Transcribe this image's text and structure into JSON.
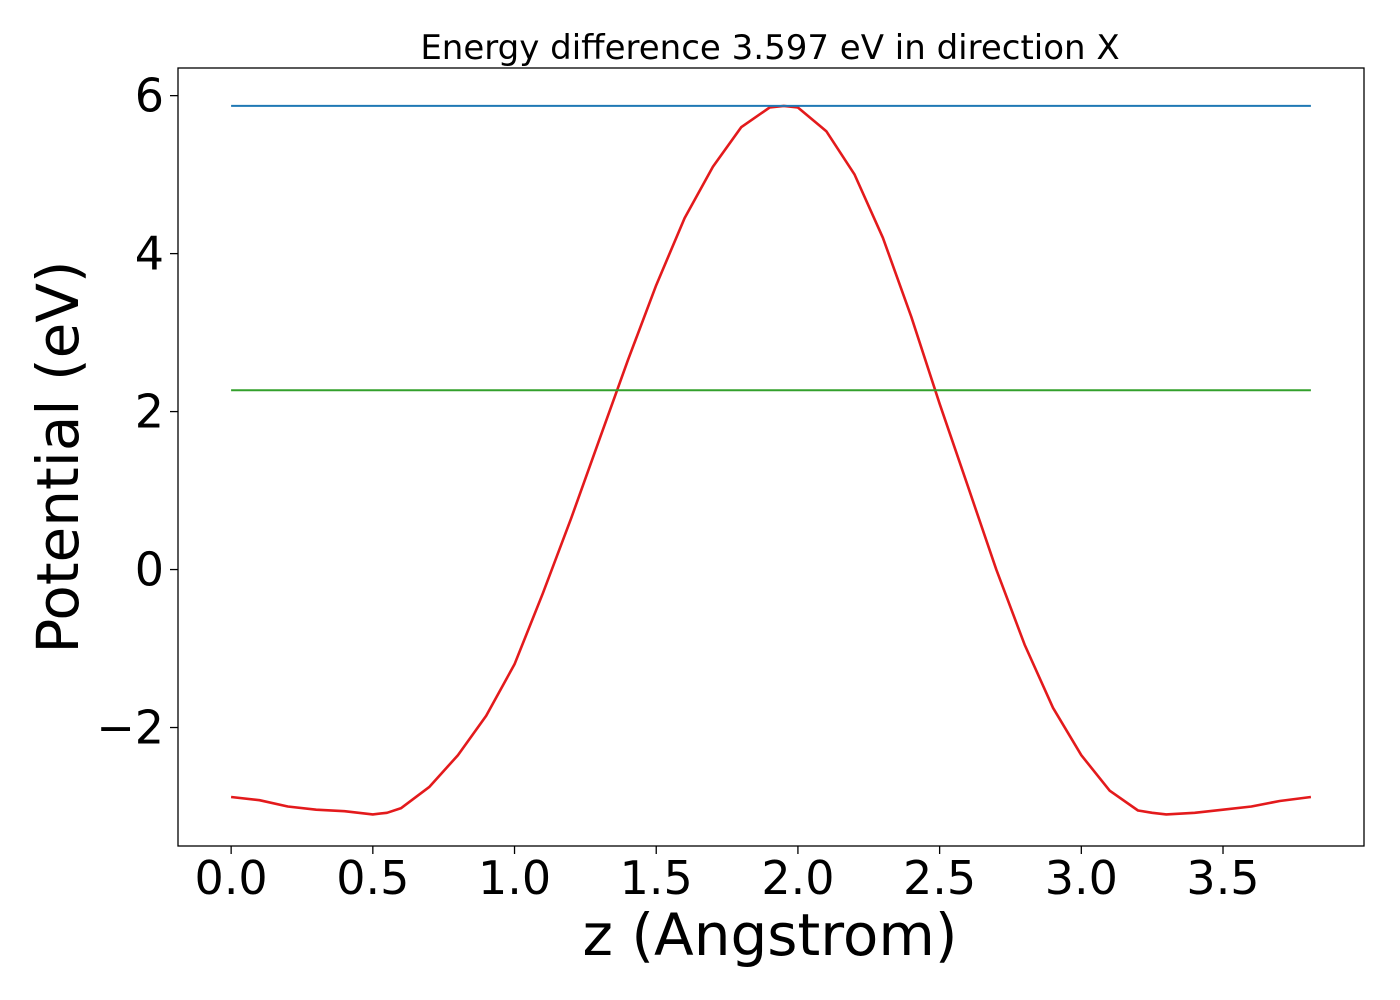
{
  "chart_data": {
    "type": "line",
    "title": "Energy difference 3.597 eV in direction X",
    "xlabel": "z (Angstrom)",
    "ylabel": "Potential (eV)",
    "xlim": [
      -0.1875,
      3.9975
    ],
    "ylim": [
      -3.5,
      6.35
    ],
    "xticks": [
      0.0,
      0.5,
      1.0,
      1.5,
      2.0,
      2.5,
      3.0,
      3.5
    ],
    "xtick_labels": [
      "0.0",
      "0.5",
      "1.0",
      "1.5",
      "2.0",
      "2.5",
      "3.0",
      "3.5"
    ],
    "yticks": [
      -2,
      0,
      2,
      4,
      6
    ],
    "ytick_labels": [
      "−2",
      "0",
      "2",
      "4",
      "6"
    ],
    "grid": false,
    "colors": {
      "potential": "#e31a1c",
      "max_level": "#1f78b4",
      "average_level": "#33a02c"
    },
    "series": [
      {
        "key": "potential",
        "x": [
          0.0,
          0.1,
          0.2,
          0.3,
          0.4,
          0.5,
          0.55,
          0.6,
          0.7,
          0.8,
          0.9,
          1.0,
          1.1,
          1.2,
          1.3,
          1.4,
          1.5,
          1.6,
          1.7,
          1.8,
          1.9,
          1.95,
          2.0,
          2.1,
          2.2,
          2.3,
          2.4,
          2.5,
          2.6,
          2.7,
          2.8,
          2.9,
          3.0,
          3.1,
          3.2,
          3.25,
          3.3,
          3.4,
          3.5,
          3.6,
          3.7,
          3.81
        ],
        "y": [
          -2.88,
          -2.92,
          -3.0,
          -3.04,
          -3.06,
          -3.1,
          -3.08,
          -3.02,
          -2.75,
          -2.35,
          -1.85,
          -1.2,
          -0.3,
          0.65,
          1.65,
          2.65,
          3.6,
          4.45,
          5.1,
          5.6,
          5.85,
          5.87,
          5.85,
          5.55,
          5.0,
          4.2,
          3.2,
          2.1,
          1.05,
          0.0,
          -0.95,
          -1.75,
          -2.35,
          -2.8,
          -3.05,
          -3.08,
          -3.1,
          -3.08,
          -3.04,
          -3.0,
          -2.93,
          -2.88
        ]
      },
      {
        "key": "max_level",
        "x": [
          0.0,
          3.81
        ],
        "y": [
          5.87,
          5.87
        ]
      },
      {
        "key": "average_level",
        "x": [
          0.0,
          3.81
        ],
        "y": [
          2.27,
          2.27
        ]
      }
    ]
  }
}
